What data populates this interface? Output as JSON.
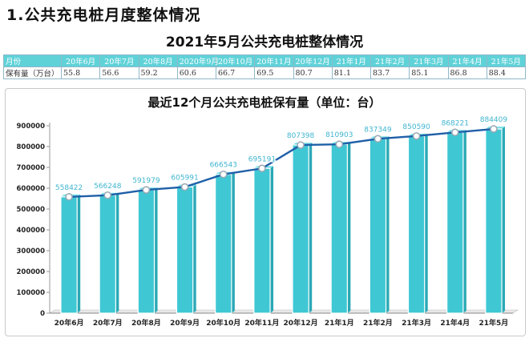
{
  "page": {
    "heading": "1.公共充电桩月度整体情况",
    "subtitle": "2021年5月公共充电桩整体情况"
  },
  "table": {
    "header_label": "月份",
    "row_label": "保有量（万台）",
    "months": [
      "20年6月",
      "20年7月",
      "20年8月",
      "2020年9月",
      "20年10月",
      "20年11月",
      "20年12月",
      "21年1月",
      "21年2月",
      "21年3月",
      "21年4月",
      "21年5月"
    ],
    "values": [
      "55.8",
      "56.6",
      "59.2",
      "60.6",
      "66.7",
      "69.5",
      "80.7",
      "81.1",
      "83.7",
      "85.1",
      "86.8",
      "88.4"
    ]
  },
  "chart_data": {
    "type": "bar",
    "title": "最近12个月公共充电桩保有量（单位：台）",
    "categories": [
      "20年6月",
      "20年7月",
      "20年8月",
      "20年9月",
      "20年10月",
      "20年11月",
      "20年12月",
      "21年1月",
      "21年2月",
      "21年3月",
      "21年4月",
      "21年5月"
    ],
    "series": [
      {
        "values": [
          558422,
          566248,
          591979,
          605991,
          666543,
          695191,
          807398,
          810903,
          837349,
          850590,
          868221,
          884409
        ]
      }
    ],
    "overlay_line": true,
    "ylim": [
      0,
      900000
    ],
    "yticks": [
      0,
      100000,
      200000,
      300000,
      400000,
      500000,
      600000,
      700000,
      800000,
      900000
    ],
    "grid": false,
    "colors": {
      "bar": "#3fc8d4",
      "line": "#1f5fa8",
      "label": "#3fb5d0"
    }
  }
}
